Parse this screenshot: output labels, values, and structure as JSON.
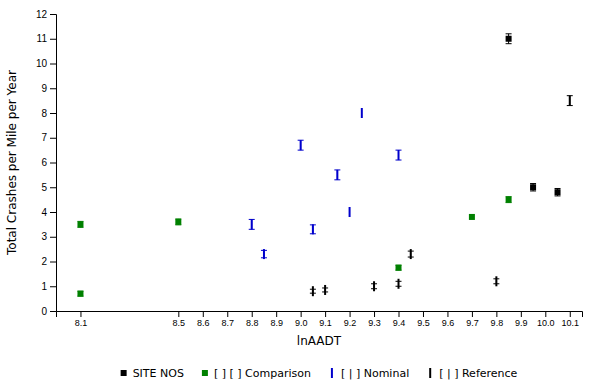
{
  "chart_data": {
    "type": "scatter",
    "x_label": "lnAADT",
    "y_label": "Total Crashes per Mile per Year",
    "xlim": [
      8.0,
      10.15
    ],
    "ylim": [
      0,
      12
    ],
    "xticks": [
      8.1,
      8.5,
      8.6,
      8.7,
      8.8,
      8.9,
      {
        "value": 9.0,
        "label": "9.0"
      },
      9.1,
      9.2,
      9.3,
      9.4,
      9.5,
      9.6,
      9.7,
      9.8,
      9.9,
      {
        "value": 10.0,
        "label": "10.0"
      },
      10.1
    ],
    "yticks": [
      0,
      1,
      2,
      3,
      4,
      5,
      6,
      7,
      8,
      9,
      10,
      11,
      12
    ],
    "grid": false,
    "legend": "bottom",
    "series": [
      {
        "name": "SITE NOS",
        "color": "#000000",
        "marker": "square",
        "x": [
          9.85,
          9.95,
          10.05
        ],
        "values": [
          11.0,
          5.0,
          4.8
        ],
        "yerr": [
          0.2,
          0.15,
          0.15
        ]
      },
      {
        "name": "[ ] [ ] Comparison",
        "color": "#008000",
        "marker": "square",
        "x": [
          8.1,
          8.5,
          8.1,
          9.4,
          9.85,
          9.7
        ],
        "values": [
          3.5,
          3.6,
          0.7,
          1.75,
          4.5,
          3.8
        ],
        "yerr": [
          0.12,
          0.12,
          0.1,
          0.1,
          0.12,
          0.0
        ]
      },
      {
        "name": "[ | ] Nominal",
        "color": "#0000cc",
        "marker": "vline",
        "x": [
          8.8,
          8.85,
          9.0,
          9.05,
          9.15,
          9.2,
          9.25,
          9.4
        ],
        "values": [
          3.5,
          2.3,
          6.7,
          3.3,
          5.5,
          4.0,
          8.0,
          6.3
        ],
        "yerr": [
          0.2,
          0.15,
          0.2,
          0.18,
          0.2,
          0.0,
          0.0,
          0.2
        ]
      },
      {
        "name": "[ | ] Reference",
        "color": "#000000",
        "marker": "vline",
        "x": [
          9.05,
          9.1,
          9.3,
          9.4,
          9.45,
          9.8,
          10.1
        ],
        "values": [
          0.8,
          0.85,
          1.0,
          1.1,
          2.3,
          1.2,
          8.5
        ],
        "yerr": [
          0.08,
          0.08,
          0.1,
          0.1,
          0.12,
          0.1,
          0.2
        ]
      }
    ]
  }
}
